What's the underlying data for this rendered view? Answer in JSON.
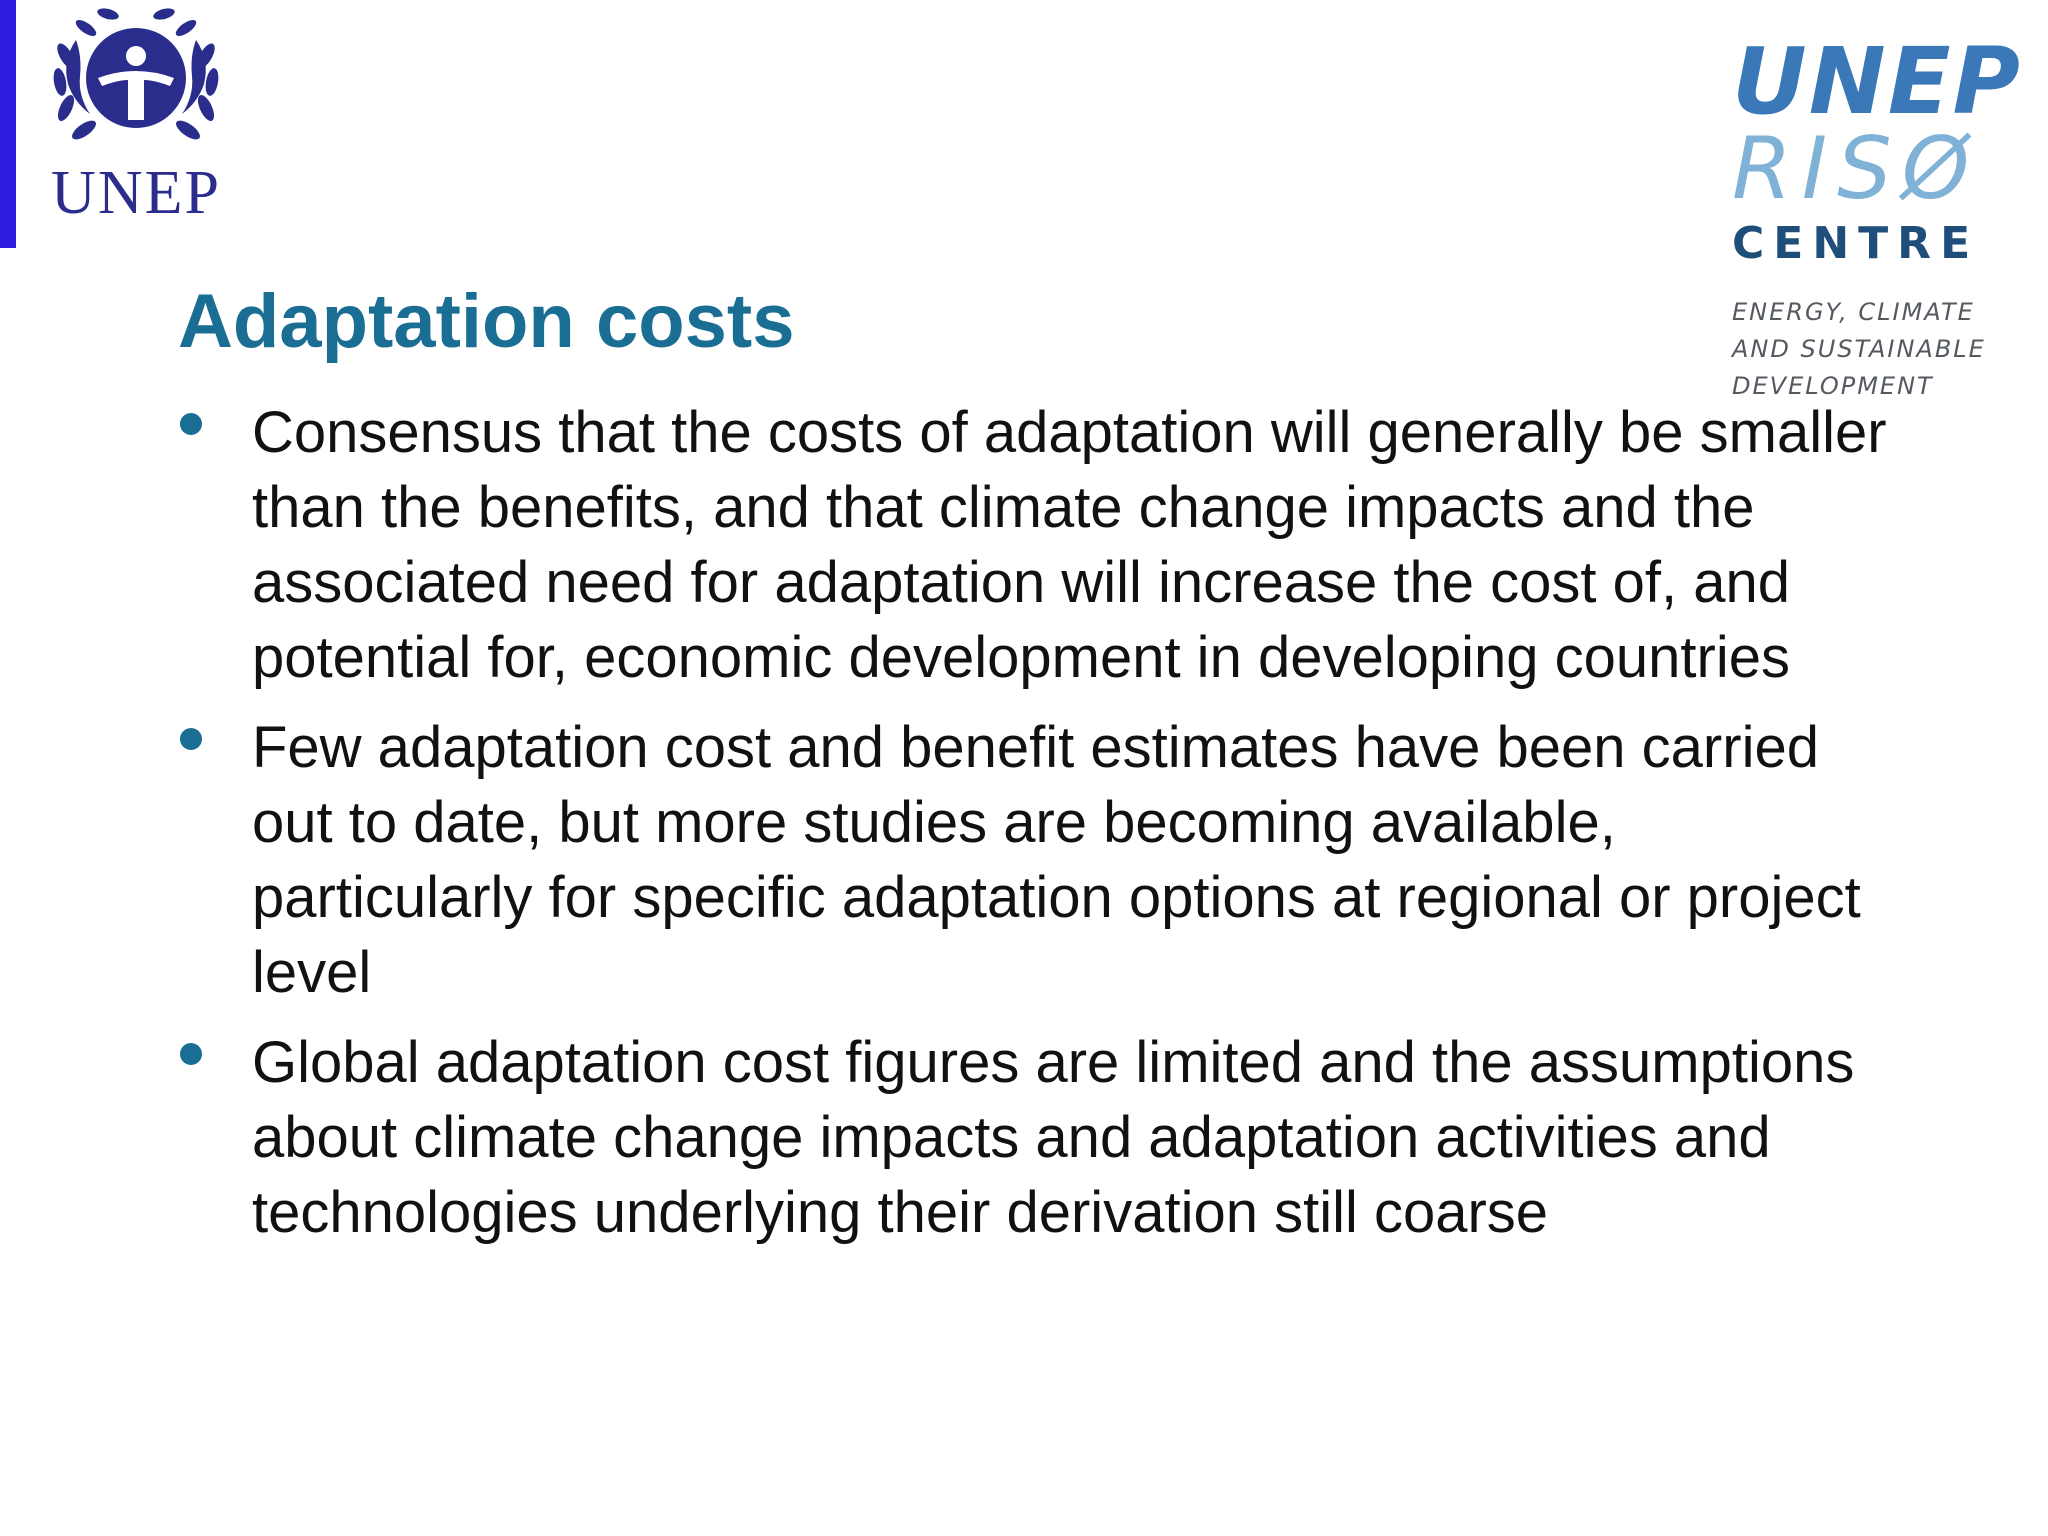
{
  "logos": {
    "unep_text": "UNEP",
    "riso_line1": "UNEP",
    "riso_line2": "RISØ",
    "riso_line3": "CENTRE",
    "riso_tagline1": "ENERGY, CLIMATE",
    "riso_tagline2": "AND SUSTAINABLE",
    "riso_tagline3": "DEVELOPMENT"
  },
  "slide": {
    "title": "Adaptation costs",
    "bullets": [
      "Consensus that the costs of adaptation will generally be smaller than the benefits, and that climate change impacts and the associated need for adaptation will increase the cost of, and potential for, economic development in developing countries",
      "Few adaptation cost and benefit estimates have been carried out to date, but more studies are becoming available, particularly for specific adaptation options at regional or project level",
      "Global adaptation cost figures are limited and the assumptions about climate change impacts and adaptation activities and technologies underlying their derivation still coarse"
    ]
  },
  "colors": {
    "title": "#1a6e94",
    "bullet": "#1a6e94",
    "accent_bar": "#2e1de0",
    "unep_logo": "#2b2d8c",
    "riso_blue": "#3a78b8",
    "riso_light_blue": "#7fb2d6"
  }
}
